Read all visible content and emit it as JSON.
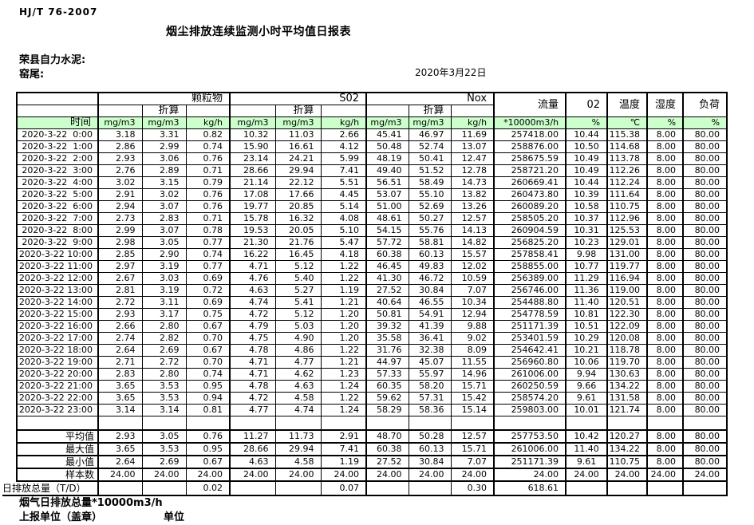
{
  "doc_code": "HJ/T  76-2007",
  "title": "烟尘排放连续监测小时平均值日报表",
  "company": "荣县自力水泥:",
  "location": "窑尾:",
  "date": "2020年3月22日",
  "table": {
    "time_label": "时间",
    "zhesuan_label": "折算",
    "group_headers": {
      "pm": "颗粒物",
      "so2": "S02",
      "nox": "Nox",
      "flow": "流量",
      "o2": "02",
      "temp": "温度",
      "humidity": "湿度",
      "load": "负荷"
    },
    "units": [
      "mg/m3",
      "mg/m3",
      "kg/h",
      "mg/m3",
      "mg/m3",
      "kg/h",
      "mg/m3",
      "mg/m3",
      "kg/h",
      "*10000m3/h",
      "%",
      "℃",
      "%",
      "%"
    ],
    "rows": [
      {
        "time": "2020-3-22  0:00",
        "values": [
          "3.18",
          "3.31",
          "0.82",
          "10.32",
          "11.03",
          "2.66",
          "45.41",
          "46.97",
          "11.69",
          "257418.00",
          "10.44",
          "115.38",
          "8.00",
          "80.00"
        ]
      },
      {
        "time": "2020-3-22  1:00",
        "values": [
          "2.86",
          "2.99",
          "0.74",
          "15.90",
          "16.61",
          "4.12",
          "50.48",
          "52.74",
          "13.07",
          "258876.00",
          "10.50",
          "114.68",
          "8.00",
          "80.00"
        ]
      },
      {
        "time": "2020-3-22  2:00",
        "values": [
          "2.93",
          "3.06",
          "0.76",
          "23.14",
          "24.21",
          "5.99",
          "48.19",
          "50.41",
          "12.47",
          "258675.59",
          "10.49",
          "113.78",
          "8.00",
          "80.00"
        ]
      },
      {
        "time": "2020-3-22  3:00",
        "values": [
          "2.76",
          "2.89",
          "0.71",
          "28.66",
          "29.94",
          "7.41",
          "49.40",
          "51.52",
          "12.78",
          "258721.20",
          "10.49",
          "112.26",
          "8.00",
          "80.00"
        ]
      },
      {
        "time": "2020-3-22  4:00",
        "values": [
          "3.02",
          "3.15",
          "0.79",
          "21.14",
          "22.12",
          "5.51",
          "56.51",
          "58.49",
          "14.73",
          "260669.41",
          "10.44",
          "112.24",
          "8.00",
          "80.00"
        ]
      },
      {
        "time": "2020-3-22  5:00",
        "values": [
          "2.91",
          "3.02",
          "0.76",
          "17.08",
          "17.66",
          "4.45",
          "53.07",
          "55.10",
          "13.82",
          "260473.80",
          "10.39",
          "111.64",
          "8.00",
          "80.00"
        ]
      },
      {
        "time": "2020-3-22  6:00",
        "values": [
          "2.94",
          "3.07",
          "0.76",
          "19.77",
          "20.85",
          "5.14",
          "51.00",
          "52.69",
          "13.26",
          "260089.20",
          "10.58",
          "110.75",
          "8.00",
          "80.00"
        ]
      },
      {
        "time": "2020-3-22  7:00",
        "values": [
          "2.73",
          "2.83",
          "0.71",
          "15.78",
          "16.32",
          "4.08",
          "48.61",
          "50.27",
          "12.57",
          "258505.20",
          "10.37",
          "112.96",
          "8.00",
          "80.00"
        ]
      },
      {
        "time": "2020-3-22  8:00",
        "values": [
          "2.99",
          "3.07",
          "0.78",
          "19.53",
          "20.05",
          "5.10",
          "54.15",
          "55.76",
          "14.13",
          "260904.59",
          "10.31",
          "125.53",
          "8.00",
          "80.00"
        ]
      },
      {
        "time": "2020-3-22  9:00",
        "values": [
          "2.98",
          "3.05",
          "0.77",
          "21.30",
          "21.76",
          "5.47",
          "57.72",
          "58.81",
          "14.82",
          "256825.20",
          "10.23",
          "129.01",
          "8.00",
          "80.00"
        ]
      },
      {
        "time": "2020-3-22 10:00",
        "values": [
          "2.85",
          "2.90",
          "0.74",
          "16.22",
          "16.45",
          "4.18",
          "60.38",
          "60.13",
          "15.57",
          "257858.41",
          "9.98",
          "131.00",
          "8.00",
          "80.00"
        ]
      },
      {
        "time": "2020-3-22 11:00",
        "values": [
          "2.97",
          "3.19",
          "0.77",
          "4.71",
          "5.12",
          "1.22",
          "46.45",
          "49.83",
          "12.02",
          "258855.00",
          "10.77",
          "119.77",
          "8.00",
          "80.00"
        ]
      },
      {
        "time": "2020-3-22 12:00",
        "values": [
          "2.67",
          "3.03",
          "0.69",
          "4.76",
          "5.40",
          "1.22",
          "41.30",
          "46.72",
          "10.59",
          "256389.00",
          "11.29",
          "116.94",
          "8.00",
          "80.00"
        ]
      },
      {
        "time": "2020-3-22 13:00",
        "values": [
          "2.81",
          "3.19",
          "0.72",
          "4.63",
          "5.27",
          "1.19",
          "27.52",
          "30.84",
          "7.07",
          "256746.00",
          "11.36",
          "119.00",
          "8.00",
          "80.00"
        ]
      },
      {
        "time": "2020-3-22 14:00",
        "values": [
          "2.72",
          "3.11",
          "0.69",
          "4.74",
          "5.41",
          "1.21",
          "40.64",
          "46.55",
          "10.34",
          "254488.80",
          "11.40",
          "120.51",
          "8.00",
          "80.00"
        ]
      },
      {
        "time": "2020-3-22 15:00",
        "values": [
          "2.93",
          "3.17",
          "0.75",
          "4.72",
          "5.12",
          "1.20",
          "50.81",
          "54.91",
          "12.94",
          "254778.59",
          "10.81",
          "122.30",
          "8.00",
          "80.00"
        ]
      },
      {
        "time": "2020-3-22 16:00",
        "values": [
          "2.66",
          "2.80",
          "0.67",
          "4.79",
          "5.03",
          "1.20",
          "39.32",
          "41.39",
          "9.88",
          "251171.39",
          "10.51",
          "122.09",
          "8.00",
          "80.00"
        ]
      },
      {
        "time": "2020-3-22 17:00",
        "values": [
          "2.74",
          "2.82",
          "0.70",
          "4.75",
          "4.90",
          "1.20",
          "35.58",
          "36.41",
          "9.02",
          "253401.59",
          "10.29",
          "120.08",
          "8.00",
          "80.00"
        ]
      },
      {
        "time": "2020-3-22 18:00",
        "values": [
          "2.64",
          "2.69",
          "0.67",
          "4.78",
          "4.86",
          "1.22",
          "31.76",
          "32.38",
          "8.09",
          "254642.41",
          "10.21",
          "118.78",
          "8.00",
          "80.00"
        ]
      },
      {
        "time": "2020-3-22 19:00",
        "values": [
          "2.71",
          "2.72",
          "0.70",
          "4.71",
          "4.77",
          "1.21",
          "44.97",
          "45.07",
          "11.55",
          "256960.80",
          "10.06",
          "119.70",
          "8.00",
          "80.00"
        ]
      },
      {
        "time": "2020-3-22 20:00",
        "values": [
          "2.83",
          "2.80",
          "0.74",
          "4.71",
          "4.62",
          "1.23",
          "57.33",
          "55.97",
          "14.96",
          "261006.00",
          "9.94",
          "130.63",
          "8.00",
          "80.00"
        ]
      },
      {
        "time": "2020-3-22 21:00",
        "values": [
          "3.65",
          "3.53",
          "0.95",
          "4.78",
          "4.63",
          "1.24",
          "60.35",
          "58.20",
          "15.71",
          "260250.59",
          "9.66",
          "134.22",
          "8.00",
          "80.00"
        ]
      },
      {
        "time": "2020-3-22 22:00",
        "values": [
          "3.65",
          "3.53",
          "0.94",
          "4.72",
          "4.58",
          "1.22",
          "59.62",
          "57.31",
          "15.42",
          "258574.20",
          "9.61",
          "131.58",
          "8.00",
          "80.00"
        ]
      },
      {
        "time": "2020-3-22 23:00",
        "values": [
          "3.14",
          "3.14",
          "0.81",
          "4.77",
          "4.74",
          "1.24",
          "58.29",
          "58.36",
          "15.14",
          "259803.00",
          "10.01",
          "121.74",
          "8.00",
          "80.00"
        ]
      }
    ],
    "summary": [
      {
        "label": "平均值",
        "values": [
          "2.93",
          "3.05",
          "0.76",
          "11.27",
          "11.73",
          "2.91",
          "48.70",
          "50.28",
          "12.57",
          "257753.50",
          "10.42",
          "120.27",
          "8.00",
          "80.00"
        ]
      },
      {
        "label": "最大值",
        "values": [
          "3.65",
          "3.53",
          "0.95",
          "28.66",
          "29.94",
          "7.41",
          "60.38",
          "60.13",
          "15.71",
          "261006.00",
          "11.40",
          "134.22",
          "8.00",
          "80.00"
        ]
      },
      {
        "label": "最小值",
        "values": [
          "2.64",
          "2.69",
          "0.67",
          "4.63",
          "4.58",
          "1.19",
          "27.52",
          "30.84",
          "7.07",
          "251171.39",
          "9.61",
          "110.75",
          "8.00",
          "80.00"
        ]
      },
      {
        "label": "样本数",
        "values": [
          "24.00",
          "24.00",
          "24.00",
          "24.00",
          "24.00",
          "24.00",
          "24.00",
          "24.00",
          "24.00",
          "24.00",
          "24.00",
          "24.00",
          "24.00",
          "24.00"
        ]
      },
      {
        "label": "日排放总量（T/D）",
        "values": [
          "",
          "",
          "0.02",
          "",
          "",
          "0.07",
          "",
          "",
          "0.30",
          "618.61",
          "",
          "",
          "",
          ""
        ]
      }
    ]
  },
  "footer": {
    "flue_total": "烟气日排放总量*10000m3/h",
    "report_unit_stamp": "上报单位（盖章）",
    "unit": "单位"
  }
}
